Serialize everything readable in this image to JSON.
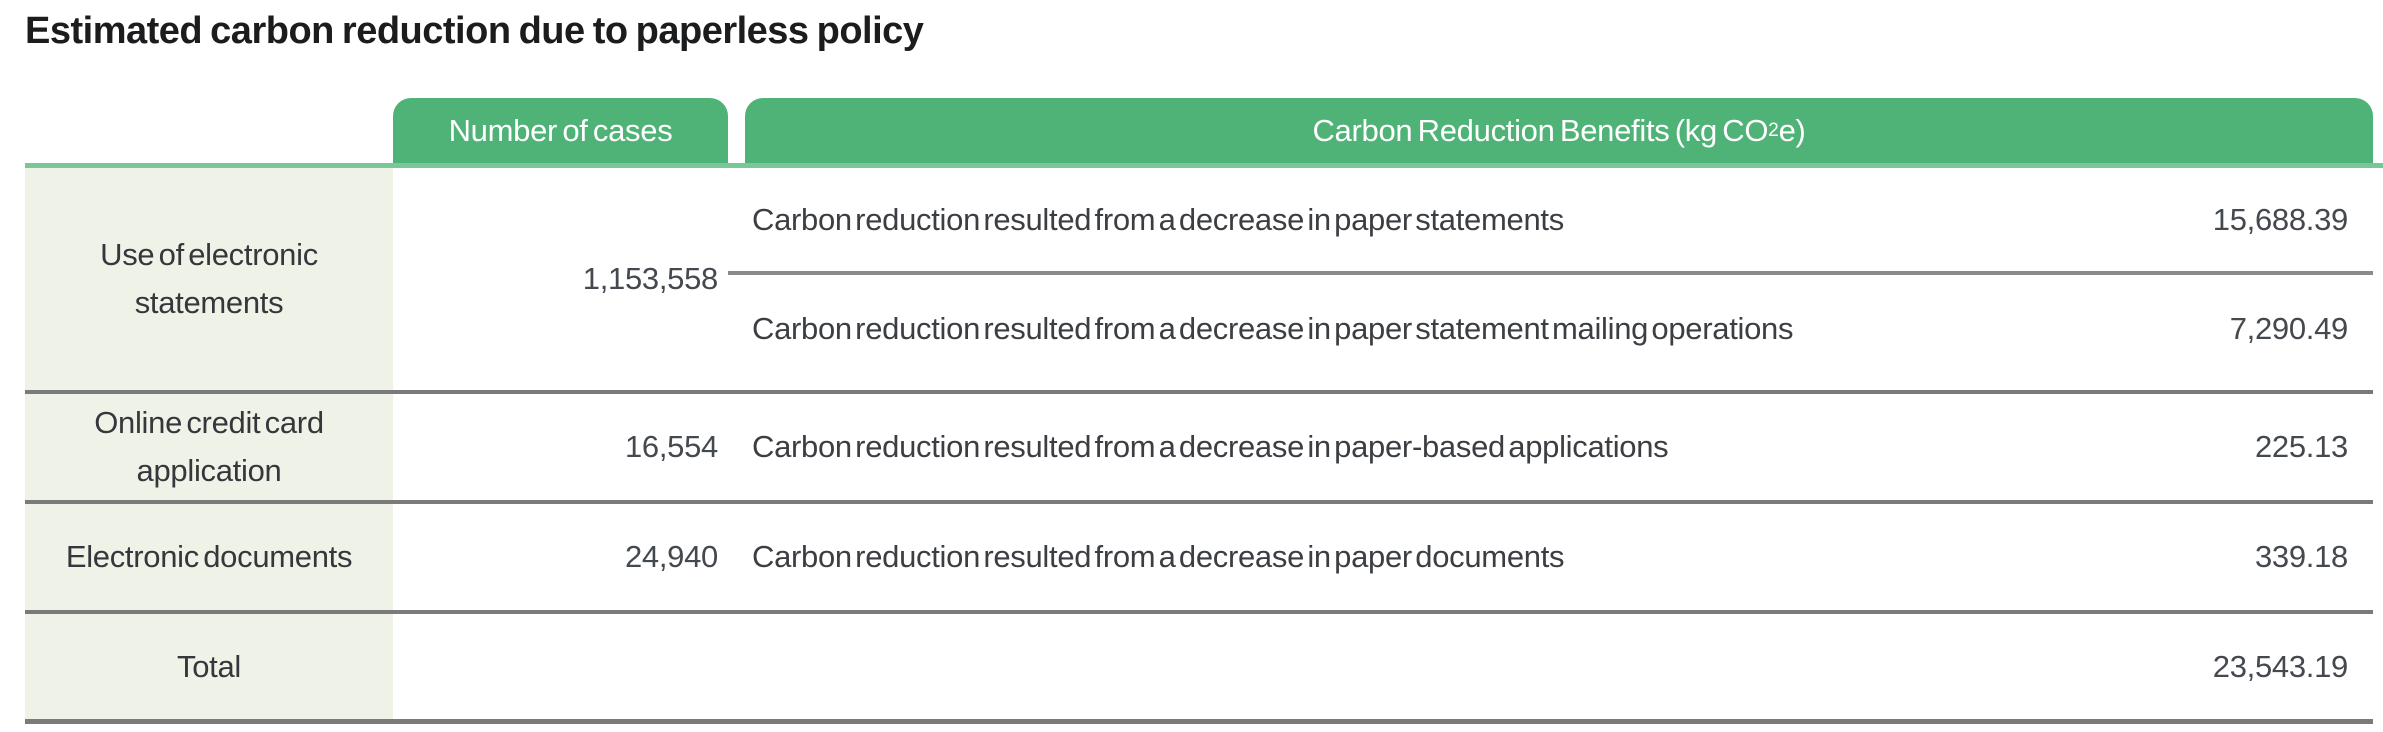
{
  "title": "Estimated carbon reduction due to paperless policy",
  "table": {
    "headers": {
      "cases": "Number of cases",
      "benefits_prefix": "Carbon Reduction Benefits (kg CO",
      "benefits_sub": "2",
      "benefits_suffix": "e)"
    },
    "rows": [
      {
        "label": "Use of electronic statements",
        "cases": "1,153,558",
        "benefits": [
          {
            "desc": "Carbon reduction resulted from a decrease in paper statements",
            "value": "15,688.39"
          },
          {
            "desc": "Carbon reduction resulted from a decrease in paper statement mailing operations",
            "value": "7,290.49"
          }
        ]
      },
      {
        "label": "Online credit card application",
        "cases": "16,554",
        "benefits": [
          {
            "desc": "Carbon reduction resulted from a decrease in paper-based applications",
            "value": "225.13"
          }
        ]
      },
      {
        "label": "Electronic documents",
        "cases": "24,940",
        "benefits": [
          {
            "desc": "Carbon reduction resulted from a decrease in paper documents",
            "value": "339.18"
          }
        ]
      }
    ],
    "total": {
      "label": "Total",
      "value": "23,543.19"
    }
  },
  "colors": {
    "header_green": "#4fb377",
    "header_underline_green": "#79c698",
    "row_label_background": "#eff3e7",
    "divider_gray": "#7a7a7a",
    "body_text": "#3c4043",
    "header_text": "#ffffff"
  }
}
